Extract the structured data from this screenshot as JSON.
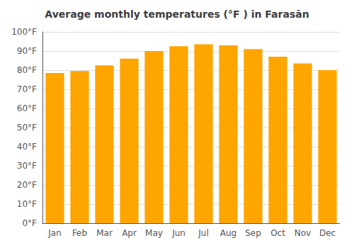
{
  "chart_data": {
    "type": "bar",
    "title": "Average monthly temperatures (°F ) in Farasān",
    "categories": [
      "Jan",
      "Feb",
      "Mar",
      "Apr",
      "May",
      "Jun",
      "Jul",
      "Aug",
      "Sep",
      "Oct",
      "Nov",
      "Dec"
    ],
    "values": [
      78.5,
      79.5,
      82.5,
      86,
      90,
      92.5,
      93.5,
      93,
      91,
      87,
      83.5,
      80
    ],
    "color": "#FFA500",
    "ylim": [
      0,
      100
    ],
    "yticks": [
      {
        "value": 0,
        "label": "0°F"
      },
      {
        "value": 10,
        "label": "10°F"
      },
      {
        "value": 20,
        "label": "20°F"
      },
      {
        "value": 30,
        "label": "30°F"
      },
      {
        "value": 40,
        "label": "40°F"
      },
      {
        "value": 50,
        "label": "50°F"
      },
      {
        "value": 60,
        "label": "60°F"
      },
      {
        "value": 70,
        "label": "70°F"
      },
      {
        "value": 80,
        "label": "80°F"
      },
      {
        "value": 90,
        "label": "90°F"
      },
      {
        "value": 100,
        "label": "100°F"
      }
    ],
    "grid": true
  }
}
